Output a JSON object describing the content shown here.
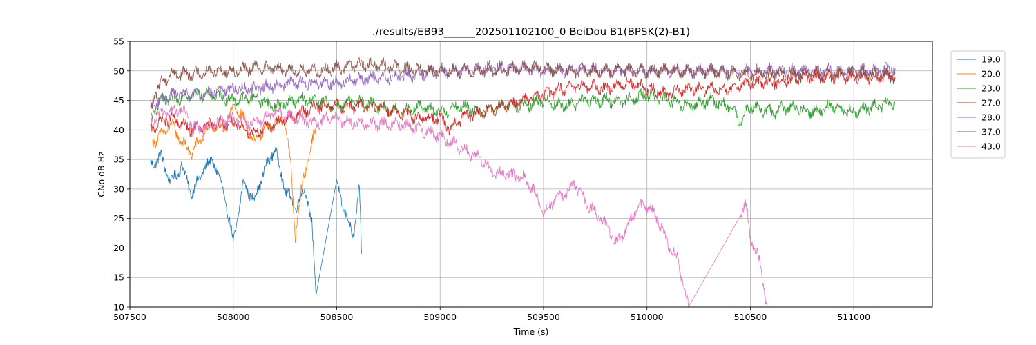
{
  "chart_data": {
    "type": "line",
    "title": "./results/EB93______202501102100_0 BeiDou B1(BPSK(2)-B1)",
    "xlabel": "Time (s)",
    "ylabel": "CNo dB Hz",
    "xlim": [
      507500,
      511380
    ],
    "ylim": [
      10,
      55
    ],
    "xticks": [
      507500,
      508000,
      508500,
      509000,
      509500,
      510000,
      510500,
      511000
    ],
    "yticks": [
      10,
      15,
      20,
      25,
      30,
      35,
      40,
      45,
      50,
      55
    ],
    "grid": true,
    "legend_position": "top-right",
    "series": [
      {
        "name": "19.0",
        "color": "#1f77b4",
        "x": [
          507600,
          507650,
          507700,
          507750,
          507800,
          507850,
          507900,
          507950,
          508000,
          508050,
          508100,
          508150,
          508200,
          508250,
          508300,
          508350,
          508380,
          508400,
          508500,
          508540,
          508580,
          508610,
          508620
        ],
        "y": [
          34,
          35.5,
          31,
          34,
          29,
          33,
          35,
          30,
          21,
          31,
          28,
          33,
          37,
          30,
          27,
          30,
          24,
          12,
          31,
          26,
          22,
          30,
          19
        ]
      },
      {
        "name": "20.0",
        "color": "#ff7f0e",
        "x": [
          507610,
          507650,
          507700,
          507750,
          507800,
          507850,
          507900,
          507950,
          508000,
          508050,
          508100,
          508150,
          508200,
          508250,
          508280,
          508300,
          508330,
          508360,
          508390,
          508400
        ],
        "y": [
          38,
          39,
          41,
          38,
          36,
          39,
          41,
          40,
          44,
          42,
          38,
          40,
          41,
          42,
          33,
          22,
          30,
          35,
          39,
          40
        ]
      },
      {
        "name": "23.0",
        "color": "#2ca02c",
        "x": [
          507600,
          507650,
          507700,
          507800,
          507900,
          508000,
          508100,
          508200,
          508300,
          508400,
          508500,
          508600,
          508700,
          508800,
          508900,
          509000,
          509100,
          509200,
          509300,
          509400,
          509500,
          509600,
          509700,
          509800,
          509900,
          510000,
          510100,
          510200,
          510300,
          510400,
          510450,
          510500,
          510600,
          510700,
          510800,
          510900,
          511000,
          511100,
          511200
        ],
        "y": [
          42,
          45,
          45,
          46,
          46,
          45,
          45.5,
          44,
          45,
          45,
          44,
          45,
          44,
          43,
          44,
          43,
          44,
          43,
          44,
          44,
          45,
          44,
          45,
          45,
          45,
          46,
          45,
          44,
          45,
          44,
          41.5,
          44,
          43,
          44,
          43,
          44,
          43,
          44,
          44.5
        ]
      },
      {
        "name": "27.0",
        "color": "#d62728",
        "x": [
          507600,
          507650,
          507700,
          507800,
          507900,
          508000,
          508100,
          508200,
          508300,
          508400,
          508500,
          508600,
          508700,
          508800,
          508900,
          509000,
          509050,
          509100,
          509200,
          509300,
          509400,
          509500,
          509600,
          509700,
          509800,
          509900,
          510000,
          510100,
          510200,
          510300,
          510400,
          510500,
          510600,
          510700,
          510800,
          510900,
          511000,
          511100,
          511200
        ],
        "y": [
          40,
          41.5,
          42,
          40,
          41,
          41,
          39.5,
          41,
          42.5,
          44,
          44,
          44,
          44,
          43,
          42,
          42,
          40,
          42,
          43,
          44,
          45,
          46,
          47,
          47.5,
          47,
          48,
          47,
          46,
          47,
          47,
          47,
          48,
          48,
          48.5,
          49,
          49,
          49,
          49,
          49
        ]
      },
      {
        "name": "28.0",
        "color": "#9467bd",
        "x": [
          507600,
          507650,
          507700,
          507800,
          507900,
          508000,
          508100,
          508200,
          508300,
          508400,
          508500,
          508600,
          508700,
          508800,
          508900,
          509000,
          509100,
          509200,
          509300,
          509400,
          509500,
          509600,
          509700,
          509800,
          509900,
          510000,
          510100,
          510200,
          510300,
          510400,
          510500,
          510600,
          510700,
          510800,
          510900,
          511000,
          511100,
          511200
        ],
        "y": [
          44,
          45,
          46,
          46,
          46.5,
          47,
          47,
          47.5,
          48,
          48,
          48,
          48.5,
          49,
          49,
          49.5,
          50,
          50,
          50.5,
          50.5,
          50.5,
          50,
          50,
          50.5,
          50,
          50,
          50,
          50,
          50,
          50,
          50,
          50,
          50,
          50,
          50,
          50,
          50,
          50,
          50.5
        ]
      },
      {
        "name": "37.0",
        "color": "#8c564b",
        "x": [
          507600,
          507620,
          507650,
          507700,
          507750,
          507800,
          507900,
          508000,
          508100,
          508200,
          508300,
          508400,
          508500,
          508600,
          508700,
          508800,
          508900,
          509000,
          509100,
          509200,
          509300,
          509400,
          509500,
          509600,
          509700,
          509800,
          509900,
          510000,
          510100,
          510200,
          510300,
          510400,
          510500,
          510600,
          510700,
          510800,
          510900,
          511000,
          511100,
          511200
        ],
        "y": [
          43,
          46,
          48,
          49.5,
          49.5,
          49.5,
          50,
          50,
          50.5,
          50.5,
          50,
          50,
          50.5,
          51,
          51,
          50.5,
          50,
          50,
          50,
          50,
          50,
          50.5,
          50.5,
          50,
          50,
          50,
          50,
          50,
          50,
          50,
          50,
          49.5,
          49.5,
          49.5,
          49.5,
          49.5,
          49.5,
          49.5,
          49.5,
          49.5
        ]
      },
      {
        "name": "43.0",
        "color": "#e377c2",
        "x": [
          507600,
          507650,
          507700,
          507750,
          507800,
          507850,
          507900,
          507950,
          508000,
          508100,
          508200,
          508250,
          508300,
          508350,
          508400,
          508450,
          508500,
          508600,
          508700,
          508800,
          508900,
          509000,
          509100,
          509200,
          509250,
          509300,
          509400,
          509450,
          509500,
          509550,
          509600,
          509650,
          509700,
          509750,
          509800,
          509850,
          509900,
          509950,
          510000,
          510050,
          510100,
          510150,
          510200,
          510450,
          510480,
          510500,
          510550,
          510580
        ],
        "y": [
          41,
          43,
          43,
          43.5,
          41,
          40,
          41,
          41.5,
          42,
          41,
          43,
          42.5,
          42,
          41.5,
          41,
          42,
          42,
          41,
          41,
          41,
          40,
          39,
          37,
          35,
          33,
          32.5,
          32,
          30,
          26,
          28,
          29,
          31,
          28,
          26,
          24,
          21,
          23,
          27,
          27,
          25,
          21,
          18,
          10,
          26,
          27,
          22,
          17,
          10
        ]
      }
    ]
  }
}
